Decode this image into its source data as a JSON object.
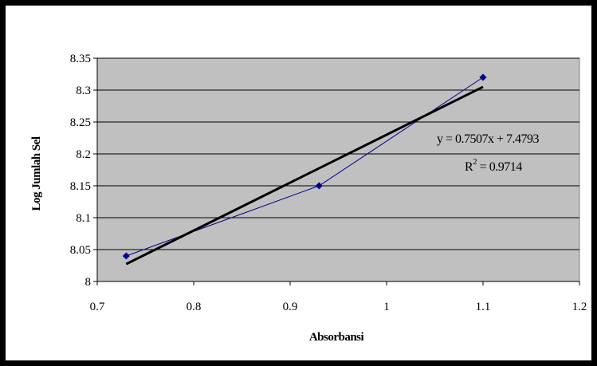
{
  "chart_data": {
    "type": "scatter",
    "xlabel": "Absorbansi",
    "ylabel": "Log Jumlah Sel",
    "xlim": [
      0.7,
      1.2
    ],
    "ylim": [
      8.0,
      8.35
    ],
    "x_ticks": [
      "0.7",
      "0.8",
      "0.9",
      "1",
      "1.1",
      "1.2"
    ],
    "y_ticks": [
      "8",
      "8.05",
      "8.1",
      "8.15",
      "8.2",
      "8.25",
      "8.3",
      "8.35"
    ],
    "grid": "horizontal",
    "series": [
      {
        "x": [
          0.73,
          0.93,
          1.1
        ],
        "y": [
          8.04,
          8.15,
          8.32
        ],
        "color": "#00008B",
        "marker": "diamond"
      }
    ],
    "trendline": {
      "type": "linear",
      "slope": 0.7507,
      "intercept": 7.4793,
      "x_range": [
        0.73,
        1.1
      ],
      "color": "#000000"
    },
    "annotations": {
      "equation": "y = 0.7507x + 7.4793",
      "r2_label": "R",
      "r2_sup": "2",
      "r2_value": " = 0.9714"
    },
    "plot_background": "#C0C0C0"
  }
}
